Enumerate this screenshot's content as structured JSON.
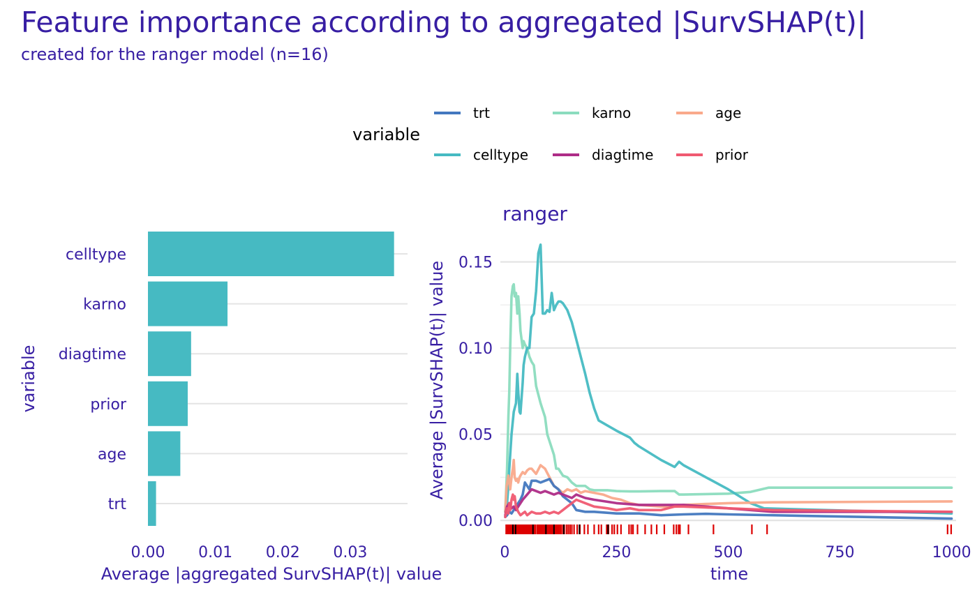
{
  "title": "Feature importance according to aggregated |SurvSHAP(t)|",
  "subtitle": "created for the ranger model (n=16)",
  "legend": {
    "title": "variable",
    "placement": "top",
    "items": [
      {
        "name": "trt",
        "color": "#4378bf"
      },
      {
        "name": "karno",
        "color": "#8bdcbe"
      },
      {
        "name": "age",
        "color": "#f9a98b"
      },
      {
        "name": "celltype",
        "color": "#46bac2"
      },
      {
        "name": "diagtime",
        "color": "#ae2c87"
      },
      {
        "name": "prior",
        "color": "#f05a71"
      }
    ]
  },
  "chart_data": [
    {
      "type": "bar",
      "orientation": "horizontal",
      "categories": [
        "celltype",
        "karno",
        "diagtime",
        "prior",
        "age",
        "trt"
      ],
      "values": [
        0.0365,
        0.0118,
        0.0064,
        0.0059,
        0.0048,
        0.0012
      ],
      "color": "#46bac2",
      "xlabel": "Average |aggregated SurvSHAP(t)| value",
      "ylabel": "variable",
      "xticks": [
        "0.00",
        "0.01",
        "0.02",
        "0.03"
      ],
      "xtick_values": [
        0,
        0.01,
        0.02,
        0.03
      ],
      "xlim": [
        0,
        0.0385
      ],
      "grid": true
    },
    {
      "type": "line",
      "panel_title": "ranger",
      "xlabel": "time",
      "ylabel": "Average |SurvSHAP(t)| value",
      "xlim": [
        -10,
        1010
      ],
      "ylim": [
        -0.004,
        0.168
      ],
      "xticks": [
        "0",
        "250",
        "500",
        "750",
        "1000"
      ],
      "xtick_values": [
        0,
        250,
        500,
        750,
        1000
      ],
      "yticks": [
        "0.00",
        "0.05",
        "0.10",
        "0.15"
      ],
      "ytick_values": [
        0,
        0.05,
        0.1,
        0.15
      ],
      "grid": true,
      "series": [
        {
          "name": "karno",
          "color": "#8bdcbe",
          "x": [
            1,
            5,
            8,
            10,
            12,
            15,
            18,
            20,
            22,
            25,
            28,
            30,
            33,
            35,
            40,
            42,
            45,
            50,
            55,
            60,
            65,
            70,
            80,
            90,
            95,
            100,
            110,
            115,
            120,
            130,
            140,
            150,
            160,
            170,
            180,
            190,
            200,
            230,
            250,
            280,
            300,
            350,
            380,
            390,
            400,
            500,
            550,
            590,
            1000
          ],
          "y": [
            0.005,
            0.03,
            0.06,
            0.075,
            0.1,
            0.13,
            0.136,
            0.137,
            0.13,
            0.132,
            0.12,
            0.13,
            0.12,
            0.11,
            0.1,
            0.104,
            0.102,
            0.1,
            0.095,
            0.092,
            0.09,
            0.078,
            0.068,
            0.06,
            0.05,
            0.046,
            0.038,
            0.03,
            0.03,
            0.026,
            0.025,
            0.022,
            0.02,
            0.02,
            0.02,
            0.018,
            0.0175,
            0.0175,
            0.017,
            0.0168,
            0.0168,
            0.017,
            0.017,
            0.015,
            0.015,
            0.0155,
            0.0165,
            0.019,
            0.019
          ]
        },
        {
          "name": "celltype",
          "color": "#46bac2",
          "x": [
            1,
            5,
            8,
            10,
            15,
            20,
            25,
            28,
            30,
            33,
            35,
            40,
            42,
            45,
            50,
            55,
            60,
            65,
            70,
            75,
            80,
            85,
            90,
            95,
            100,
            105,
            110,
            115,
            120,
            125,
            130,
            135,
            140,
            150,
            160,
            170,
            180,
            190,
            200,
            210,
            230,
            250,
            280,
            290,
            300,
            350,
            380,
            390,
            400,
            450,
            500,
            550,
            580,
            1000
          ],
          "y": [
            0.005,
            0.01,
            0.02,
            0.03,
            0.05,
            0.063,
            0.068,
            0.085,
            0.075,
            0.063,
            0.062,
            0.08,
            0.09,
            0.095,
            0.1,
            0.1,
            0.118,
            0.12,
            0.133,
            0.155,
            0.16,
            0.12,
            0.12,
            0.122,
            0.121,
            0.132,
            0.122,
            0.125,
            0.127,
            0.127,
            0.126,
            0.124,
            0.122,
            0.115,
            0.105,
            0.095,
            0.085,
            0.074,
            0.065,
            0.058,
            0.055,
            0.052,
            0.048,
            0.045,
            0.043,
            0.035,
            0.031,
            0.034,
            0.032,
            0.025,
            0.018,
            0.01,
            0.007,
            0.004
          ]
        },
        {
          "name": "age",
          "color": "#f9a98b",
          "x": [
            1,
            4,
            8,
            12,
            15,
            18,
            20,
            22,
            25,
            28,
            30,
            33,
            35,
            40,
            45,
            50,
            55,
            60,
            70,
            80,
            90,
            100,
            110,
            120,
            130,
            140,
            150,
            160,
            170,
            180,
            200,
            220,
            240,
            260,
            280,
            300,
            350,
            380,
            400,
            450,
            500,
            600,
            1000
          ],
          "y": [
            0.005,
            0.02,
            0.026,
            0.018,
            0.025,
            0.03,
            0.035,
            0.025,
            0.023,
            0.024,
            0.022,
            0.025,
            0.026,
            0.028,
            0.027,
            0.029,
            0.03,
            0.03,
            0.027,
            0.032,
            0.03,
            0.025,
            0.02,
            0.018,
            0.016,
            0.018,
            0.017,
            0.018,
            0.016,
            0.017,
            0.016,
            0.015,
            0.013,
            0.012,
            0.01,
            0.009,
            0.008,
            0.008,
            0.009,
            0.0095,
            0.01,
            0.0105,
            0.011
          ]
        },
        {
          "name": "trt",
          "color": "#4378bf",
          "x": [
            1,
            5,
            10,
            15,
            20,
            25,
            30,
            35,
            40,
            45,
            50,
            55,
            60,
            70,
            80,
            90,
            100,
            110,
            120,
            130,
            140,
            150,
            160,
            180,
            200,
            250,
            300,
            350,
            400,
            450,
            500,
            1000
          ],
          "y": [
            0.002,
            0.003,
            0.005,
            0.004,
            0.006,
            0.008,
            0.01,
            0.012,
            0.015,
            0.022,
            0.02,
            0.018,
            0.023,
            0.023,
            0.022,
            0.023,
            0.024,
            0.02,
            0.018,
            0.014,
            0.012,
            0.01,
            0.006,
            0.005,
            0.005,
            0.004,
            0.004,
            0.003,
            0.0035,
            0.0038,
            0.0035,
            0.001
          ]
        },
        {
          "name": "diagtime",
          "color": "#ae2c87",
          "x": [
            1,
            5,
            10,
            15,
            20,
            25,
            30,
            40,
            50,
            60,
            70,
            80,
            90,
            100,
            110,
            120,
            130,
            140,
            150,
            160,
            180,
            200,
            250,
            300,
            350,
            400,
            450,
            500,
            550,
            600,
            1000
          ],
          "y": [
            0.003,
            0.008,
            0.01,
            0.007,
            0.008,
            0.006,
            0.008,
            0.012,
            0.015,
            0.018,
            0.017,
            0.016,
            0.017,
            0.016,
            0.015,
            0.016,
            0.015,
            0.014,
            0.013,
            0.015,
            0.013,
            0.012,
            0.01,
            0.009,
            0.009,
            0.009,
            0.008,
            0.007,
            0.006,
            0.005,
            0.005
          ]
        },
        {
          "name": "prior",
          "color": "#f05a71",
          "x": [
            1,
            5,
            8,
            10,
            12,
            15,
            18,
            20,
            22,
            25,
            30,
            35,
            40,
            45,
            50,
            60,
            70,
            80,
            90,
            100,
            110,
            120,
            130,
            140,
            150,
            160,
            180,
            200,
            230,
            250,
            280,
            300,
            350,
            380,
            400,
            500,
            600,
            1000
          ],
          "y": [
            0.002,
            0.007,
            0.004,
            0.01,
            0.006,
            0.012,
            0.015,
            0.012,
            0.014,
            0.008,
            0.005,
            0.003,
            0.004,
            0.005,
            0.003,
            0.005,
            0.004,
            0.004,
            0.005,
            0.004,
            0.005,
            0.004,
            0.006,
            0.008,
            0.01,
            0.012,
            0.01,
            0.008,
            0.007,
            0.006,
            0.007,
            0.006,
            0.006,
            0.008,
            0.008,
            0.007,
            0.006,
            0.005
          ]
        }
      ],
      "rug": {
        "red_color": "#dd0000",
        "dark_color": "#000000",
        "red_times": [
          3,
          5,
          7,
          8,
          10,
          11,
          12,
          13,
          14,
          15,
          16,
          18,
          19,
          20,
          21,
          24,
          25,
          27,
          29,
          30,
          31,
          33,
          35,
          36,
          38,
          40,
          42,
          44,
          46,
          48,
          50,
          52,
          54,
          56,
          58,
          60,
          63,
          65,
          68,
          72,
          75,
          78,
          80,
          82,
          85,
          88,
          90,
          92,
          95,
          98,
          100,
          103,
          105,
          108,
          110,
          112,
          115,
          118,
          120,
          123,
          126,
          130,
          133,
          138,
          142,
          146,
          150,
          155,
          162,
          168,
          178,
          186,
          200,
          210,
          216,
          228,
          232,
          240,
          245,
          252,
          260,
          278,
          283,
          287,
          297,
          314,
          328,
          340,
          357,
          378,
          384,
          389,
          392,
          411,
          467,
          553,
          587,
          991,
          999
        ],
        "dark_times": [
          18,
          24,
          63,
          92,
          110,
          132,
          167,
          231
        ]
      }
    }
  ]
}
